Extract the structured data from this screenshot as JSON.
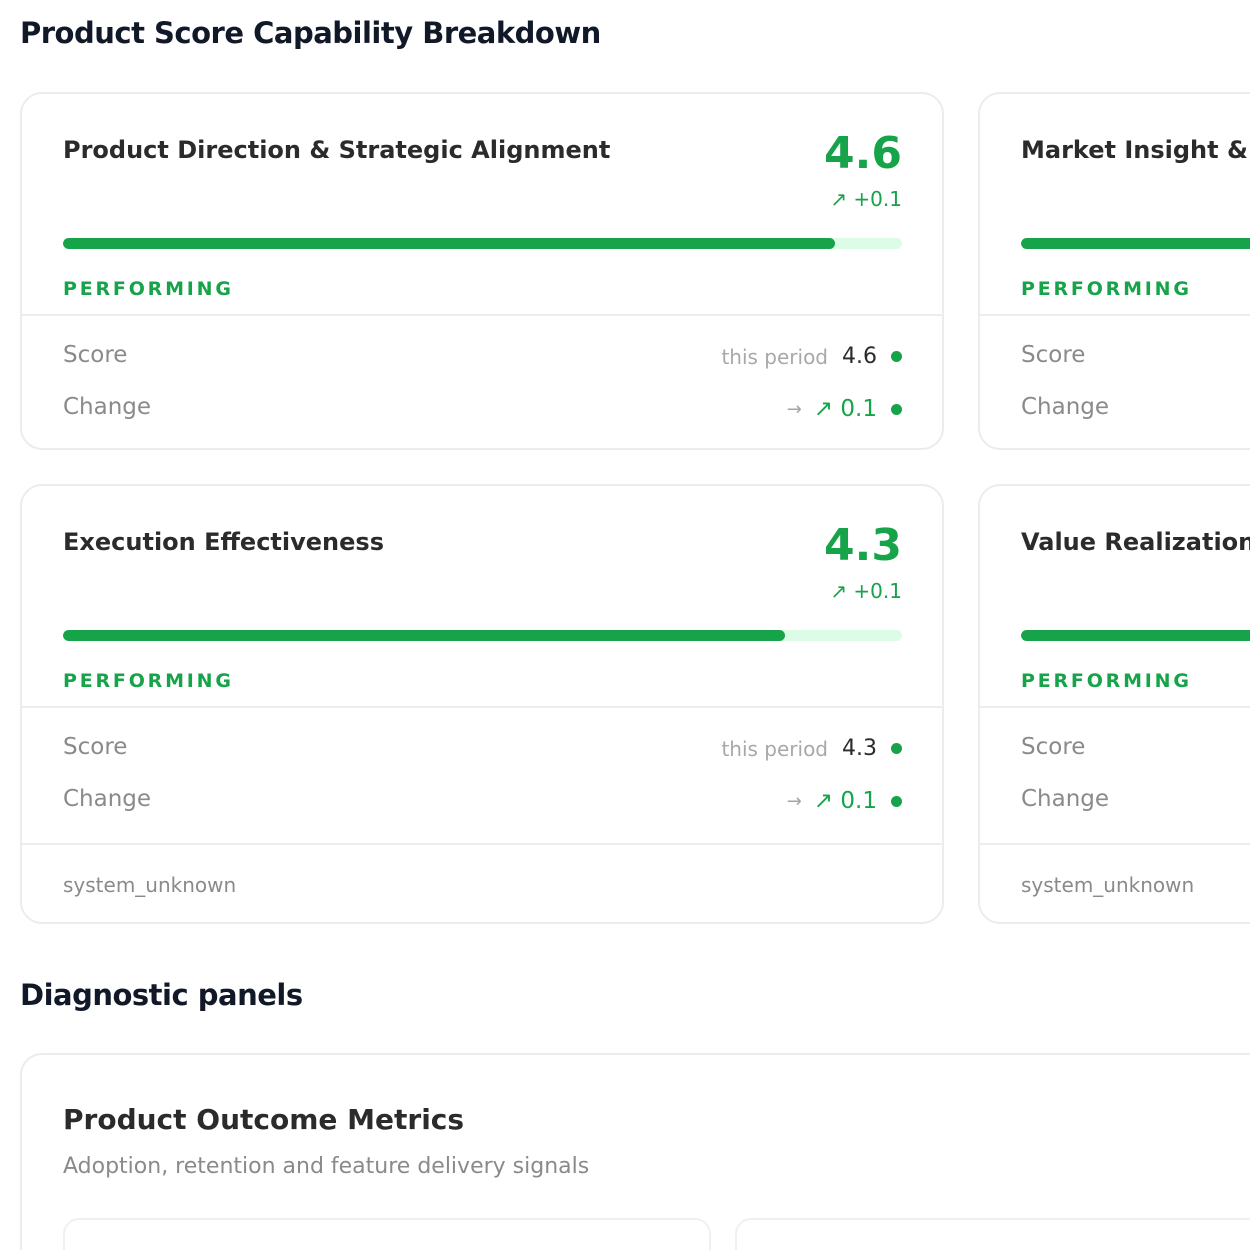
{
  "page": {
    "title": "Product Score Capability Breakdown",
    "diagnostic_title": "Diagnostic panels"
  },
  "cards": [
    {
      "name": "Product Direction & Strategic Alignment",
      "score": "4.6",
      "delta": "↗ +0.1",
      "progress": 0.92,
      "status": "PERFORMING",
      "score_label": "Score",
      "period_label": "this period",
      "score_value": "4.6",
      "change_label": "Change",
      "change_arrow": "→",
      "change_value": "↗ 0.1"
    },
    {
      "name": "Market Insight & S",
      "status": "PERFORMING",
      "progress": 1.0,
      "score_label": "Score",
      "change_label": "Change"
    },
    {
      "name": "Execution Effectiveness",
      "score": "4.3",
      "delta": "↗ +0.1",
      "progress": 0.86,
      "status": "PERFORMING",
      "score_label": "Score",
      "period_label": "this period",
      "score_value": "4.3",
      "change_label": "Change",
      "change_arrow": "→",
      "change_value": "↗ 0.1",
      "footer": "system_unknown"
    },
    {
      "name": "Value Realization &",
      "status": "PERFORMING",
      "progress": 1.0,
      "score_label": "Score",
      "change_label": "Change",
      "footer": "system_unknown"
    }
  ],
  "diagnostic": {
    "panel_title": "Product Outcome Metrics",
    "panel_subtitle": "Adoption, retention and feature delivery signals"
  },
  "colors": {
    "accent": "#16a34a",
    "track": "#dcfce7",
    "border": "#ececec"
  }
}
